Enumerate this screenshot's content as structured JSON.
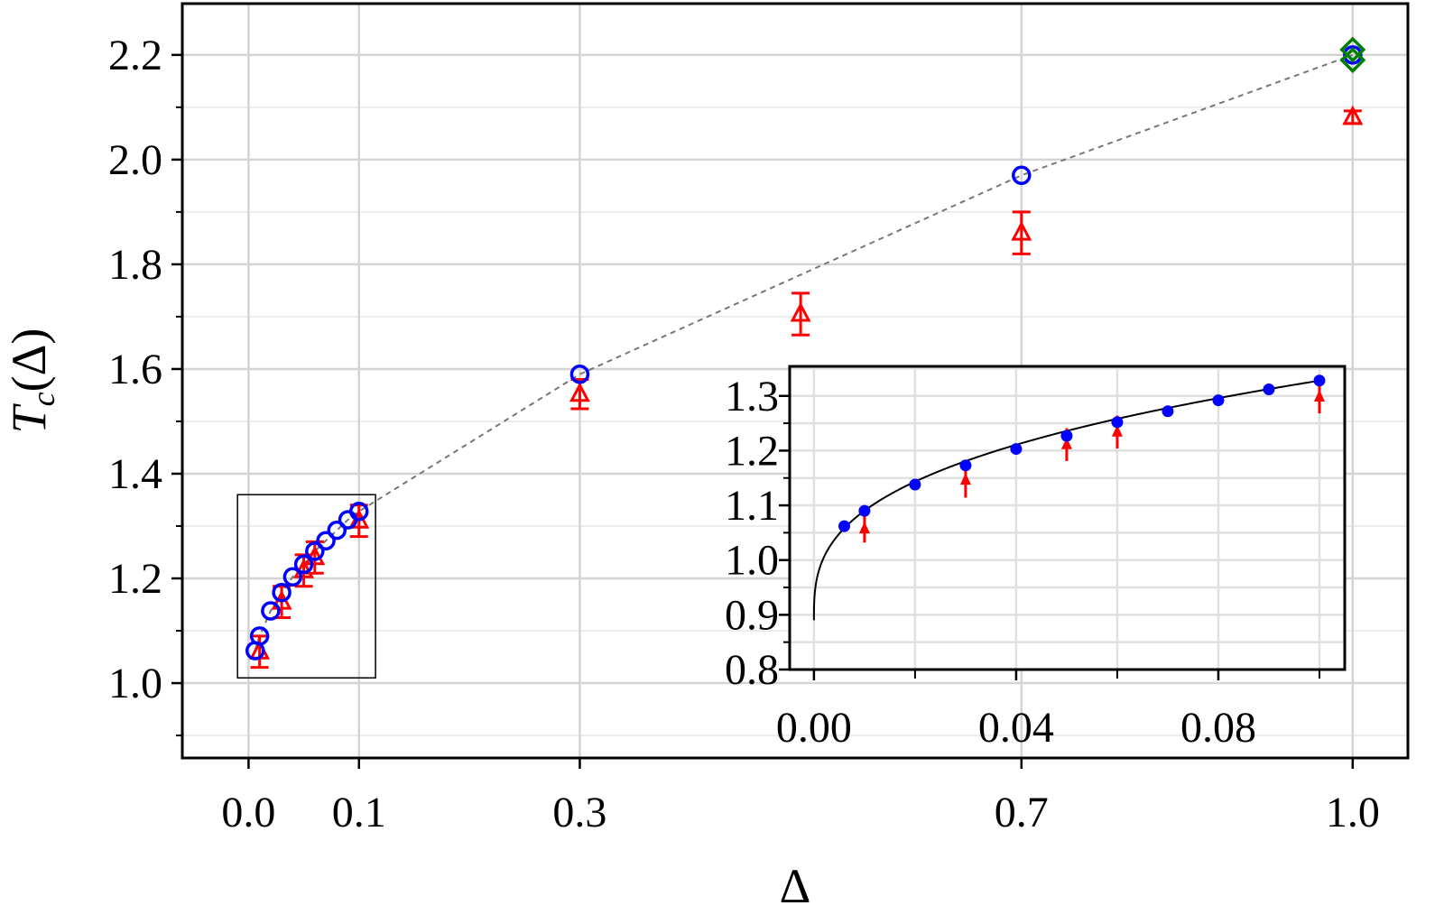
{
  "chart_data": [
    {
      "type": "scatter",
      "name": "main",
      "xlabel": "Δ",
      "ylabel_main": "T",
      "ylabel_sub": "c",
      "ylabel_rest": "(Δ)",
      "xlim": [
        -0.06,
        1.05
      ],
      "ylim": [
        0.857,
        2.298
      ],
      "xticks": [
        0.0,
        0.1,
        0.3,
        0.7,
        1.0
      ],
      "xtick_labels": [
        "0.0",
        "0.1",
        "0.3",
        "0.7",
        "1.0"
      ],
      "yticks": [
        1.0,
        1.2,
        1.4,
        1.6,
        1.8,
        2.0,
        2.2
      ],
      "ytick_labels": [
        "1.0",
        "1.2",
        "1.4",
        "1.6",
        "1.8",
        "2.0",
        "2.2"
      ],
      "yminor": [
        0.9,
        1.1,
        1.3,
        1.5,
        1.7,
        1.9,
        2.1
      ],
      "grid": true,
      "series": [
        {
          "name": "blue-circles",
          "color": "#0000ff",
          "marker": "open-circle",
          "x": [
            0.006,
            0.01,
            0.02,
            0.03,
            0.04,
            0.05,
            0.06,
            0.07,
            0.08,
            0.09,
            0.1,
            0.3,
            0.7,
            1.0
          ],
          "y": [
            1.062,
            1.09,
            1.138,
            1.173,
            1.203,
            1.227,
            1.252,
            1.272,
            1.292,
            1.312,
            1.328,
            1.59,
            1.97,
            2.2
          ]
        },
        {
          "name": "red-triangles",
          "color": "#ff0000",
          "marker": "open-triangle",
          "x": [
            0.01,
            0.03,
            0.05,
            0.06,
            0.1,
            0.3,
            0.5,
            0.7,
            1.0
          ],
          "y": [
            1.06,
            1.155,
            1.215,
            1.24,
            1.31,
            1.552,
            1.705,
            1.86,
            2.081
          ],
          "yerr": [
            0.03,
            0.03,
            0.03,
            0.03,
            0.03,
            0.028,
            0.04,
            0.04,
            0.012
          ]
        },
        {
          "name": "green-diamonds",
          "color": "#008000",
          "marker": "open-diamond",
          "x": [
            1.0,
            1.0
          ],
          "y": [
            2.21,
            2.19
          ]
        },
        {
          "name": "dashed-guide",
          "color": "#777777",
          "style": "dashed",
          "x": [
            0.006,
            0.01,
            0.02,
            0.03,
            0.04,
            0.05,
            0.06,
            0.07,
            0.08,
            0.09,
            0.1,
            0.3,
            0.7,
            1.0
          ],
          "y": [
            1.062,
            1.09,
            1.138,
            1.173,
            1.203,
            1.227,
            1.252,
            1.272,
            1.292,
            1.312,
            1.328,
            1.59,
            1.97,
            2.2
          ]
        }
      ],
      "zoom_box": {
        "x": [
          -0.01,
          0.115
        ],
        "y": [
          1.01,
          1.36
        ]
      }
    },
    {
      "type": "scatter",
      "name": "inset",
      "xlim": [
        -0.0048,
        0.105
      ],
      "ylim": [
        0.8,
        1.354
      ],
      "xticks": [
        0.0,
        0.04,
        0.08
      ],
      "xtick_labels": [
        "0.00",
        "0.04",
        "0.08"
      ],
      "xminor": [
        0.02,
        0.06,
        0.1
      ],
      "yticks": [
        0.8,
        0.9,
        1.0,
        1.1,
        1.2,
        1.3
      ],
      "ytick_labels": [
        "0.8",
        "0.9",
        "1.0",
        "1.1",
        "1.2",
        "1.3"
      ],
      "grid": true,
      "series": [
        {
          "name": "blue-dots",
          "color": "#0000ff",
          "marker": "filled-circle",
          "x": [
            0.006,
            0.01,
            0.02,
            0.03,
            0.04,
            0.05,
            0.06,
            0.07,
            0.08,
            0.09,
            0.1
          ],
          "y": [
            1.062,
            1.09,
            1.138,
            1.173,
            1.203,
            1.227,
            1.252,
            1.272,
            1.292,
            1.312,
            1.328
          ]
        },
        {
          "name": "red-triangles",
          "color": "#ff0000",
          "marker": "filled-triangle",
          "x": [
            0.01,
            0.03,
            0.05,
            0.06,
            0.1
          ],
          "y": [
            1.057,
            1.146,
            1.211,
            1.234,
            1.298
          ],
          "yerr": [
            0.025,
            0.032,
            0.03,
            0.03,
            0.03
          ]
        },
        {
          "name": "fit-curve",
          "color": "#000000",
          "style": "solid",
          "fit": {
            "form": "a + b*x^p",
            "a": 0.89,
            "b": 0.958,
            "p": 0.34
          }
        }
      ]
    }
  ]
}
